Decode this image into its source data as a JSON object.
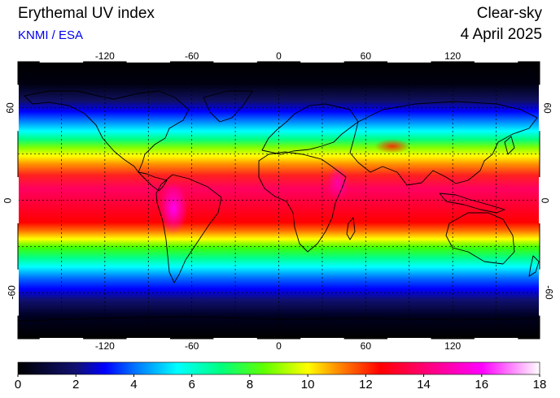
{
  "header": {
    "title": "Erythemal UV index",
    "credit": "KNMI / ESA",
    "sky_type": "Clear-sky",
    "date": "4 April 2025"
  },
  "map": {
    "lon_ticks": [
      "-120",
      "-60",
      "0",
      "60",
      "120"
    ],
    "lat_ticks": [
      "60",
      "0",
      "-60"
    ],
    "lon_values": [
      -120,
      -60,
      0,
      60,
      120
    ],
    "lat_values": [
      60,
      0,
      -60
    ],
    "lon_range": [
      -180,
      180
    ],
    "lat_range": [
      -90,
      90
    ],
    "grid": "dotted every 30 degrees"
  },
  "colorbar": {
    "labels": [
      "0",
      "2",
      "4",
      "6",
      "8",
      "10",
      "12",
      "14",
      "16",
      "18"
    ],
    "min": 0,
    "max": 18,
    "stops": [
      {
        "v": 0,
        "c": "#000000"
      },
      {
        "v": 2,
        "c": "#101070"
      },
      {
        "v": 3,
        "c": "#0000ff"
      },
      {
        "v": 4,
        "c": "#0070ff"
      },
      {
        "v": 5.5,
        "c": "#00ffff"
      },
      {
        "v": 7,
        "c": "#00ff80"
      },
      {
        "v": 8.5,
        "c": "#60ff00"
      },
      {
        "v": 10,
        "c": "#ffff00"
      },
      {
        "v": 11,
        "c": "#ff9000"
      },
      {
        "v": 12.5,
        "c": "#ff0000"
      },
      {
        "v": 14,
        "c": "#ff0070"
      },
      {
        "v": 16,
        "c": "#ff00ff"
      },
      {
        "v": 18,
        "c": "#ffffff"
      }
    ]
  }
}
